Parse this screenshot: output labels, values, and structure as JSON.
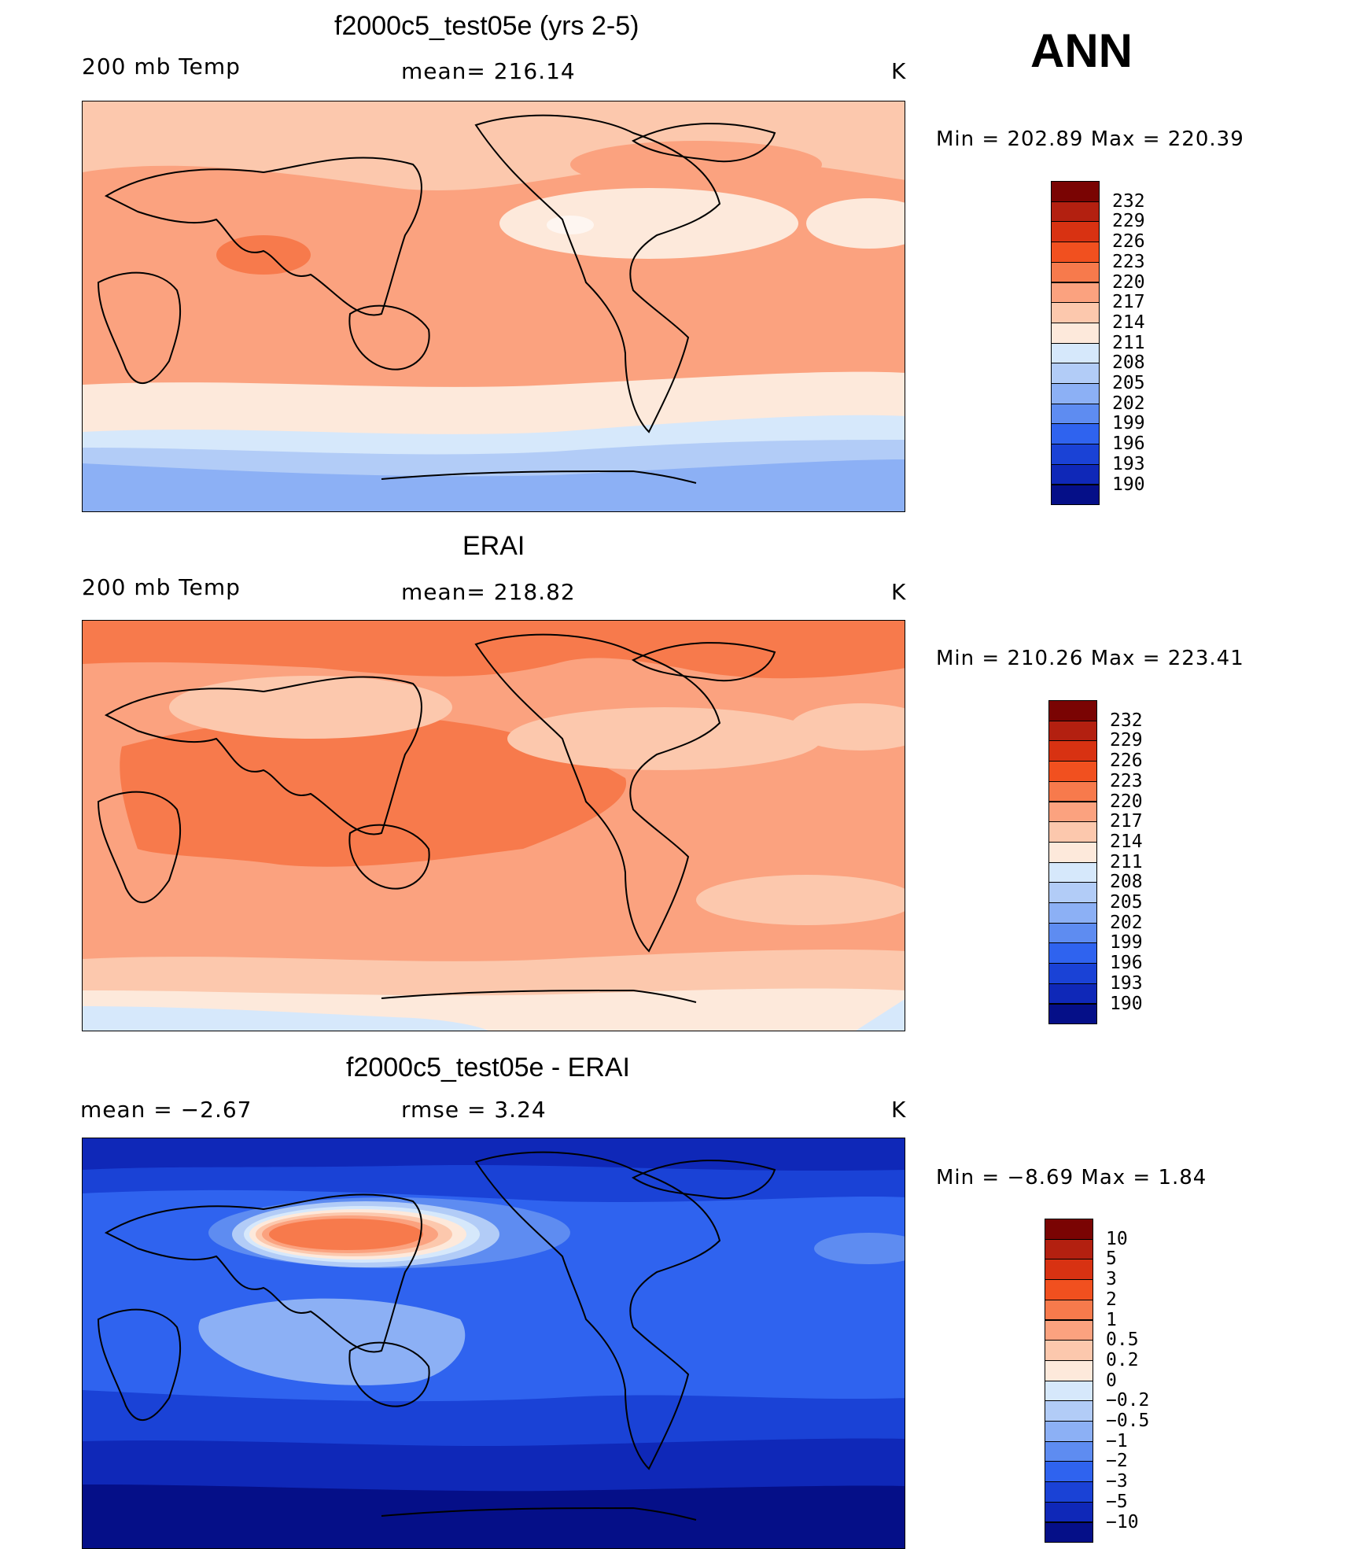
{
  "season": "ANN",
  "units": "K",
  "panels": [
    {
      "title": "f2000c5_test05e (yrs 2-5)",
      "left_label": "200 mb Temp",
      "center_label": "mean=  216.14",
      "right_label": "K",
      "min_max": "Min  =  202.89  Max  =  220.39",
      "colorbar": {
        "levels": [
          "232",
          "229",
          "226",
          "223",
          "220",
          "217",
          "214",
          "211",
          "208",
          "205",
          "202",
          "199",
          "196",
          "193",
          "190"
        ]
      }
    },
    {
      "title": "ERAI",
      "left_label": "200 mb Temp",
      "center_label": "mean=  218.82",
      "right_label": "K",
      "min_max": "Min  =  210.26  Max  =  223.41",
      "colorbar": {
        "levels": [
          "232",
          "229",
          "226",
          "223",
          "220",
          "217",
          "214",
          "211",
          "208",
          "205",
          "202",
          "199",
          "196",
          "193",
          "190"
        ]
      }
    },
    {
      "title": "f2000c5_test05e - ERAI",
      "left_label": "mean =    −2.67",
      "center_label": "rmse =     3.24",
      "right_label": "K",
      "min_max": "Min  =    −8.69  Max  =     1.84",
      "colorbar": {
        "levels": [
          "10",
          "5",
          "3",
          "2",
          "1",
          "0.5",
          "0.2",
          "0",
          "−0.2",
          "−0.5",
          "−1",
          "−2",
          "−3",
          "−5",
          "−10"
        ]
      }
    }
  ],
  "colors": {
    "colorbar_ramp": [
      "#7a0403",
      "#b32010",
      "#d83212",
      "#f1501f",
      "#f77a4c",
      "#fba27f",
      "#fcc8ad",
      "#fde9db",
      "#d6e8fb",
      "#b2ccf7",
      "#8cb0f5",
      "#5e8cf1",
      "#2f63ef",
      "#1a42d6",
      "#0f28b8",
      "#050f88"
    ],
    "land_outline": "#000000"
  }
}
